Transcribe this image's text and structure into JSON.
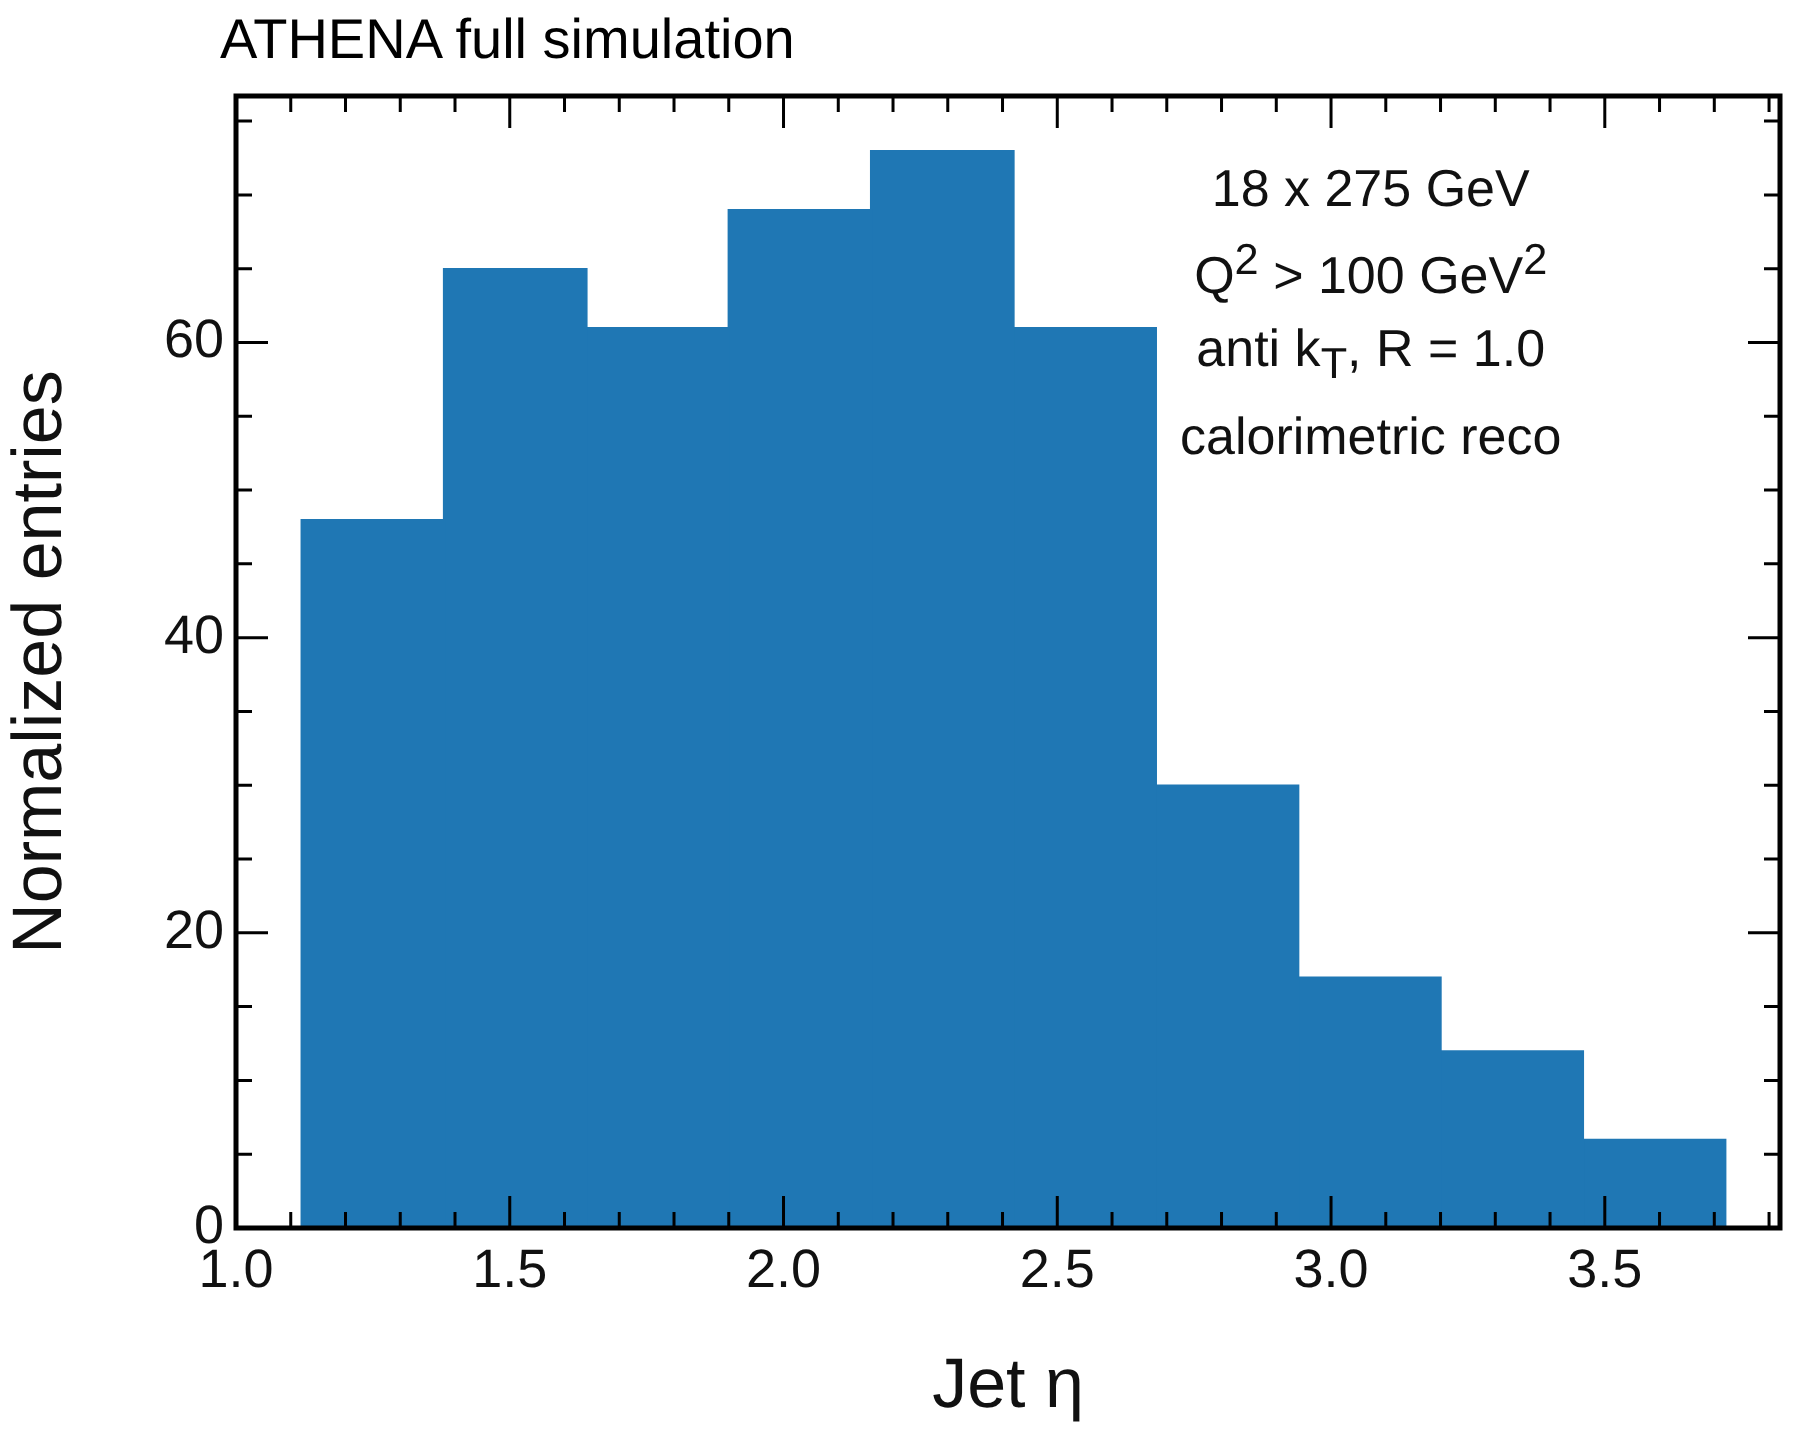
{
  "chart_data": {
    "type": "histogram",
    "title": "ATHENA full simulation",
    "xlabel": "Jet η",
    "ylabel": "Normalized entries",
    "annotations": [
      "18 x 275 GeV",
      "Q$^{2}$ > 100 GeV$^{2}$",
      "anti k$_{T}$, R = 1.0",
      "calorimetric reco"
    ],
    "bins": [
      1.12,
      1.38,
      1.64,
      1.9,
      2.16,
      2.42,
      2.68,
      2.94,
      3.2,
      3.46,
      3.72
    ],
    "values": [
      48,
      65,
      61,
      69,
      73,
      61,
      30,
      17,
      12,
      6
    ],
    "color": "#1f77b4",
    "xlim": [
      1.0,
      3.82
    ],
    "xticks": [
      {
        "value": 1.0,
        "label": "1.0"
      },
      {
        "value": 1.1,
        "label": null
      },
      {
        "value": 1.2,
        "label": null
      },
      {
        "value": 1.3,
        "label": null
      },
      {
        "value": 1.4,
        "label": null
      },
      {
        "value": 1.5,
        "label": "1.5"
      },
      {
        "value": 1.6,
        "label": null
      },
      {
        "value": 1.7,
        "label": null
      },
      {
        "value": 1.8,
        "label": null
      },
      {
        "value": 1.9,
        "label": null
      },
      {
        "value": 2.0,
        "label": "2.0"
      },
      {
        "value": 2.1,
        "label": null
      },
      {
        "value": 2.2,
        "label": null
      },
      {
        "value": 2.3,
        "label": null
      },
      {
        "value": 2.4,
        "label": null
      },
      {
        "value": 2.5,
        "label": "2.5"
      },
      {
        "value": 2.6,
        "label": null
      },
      {
        "value": 2.7,
        "label": null
      },
      {
        "value": 2.8,
        "label": null
      },
      {
        "value": 2.9,
        "label": null
      },
      {
        "value": 3.0,
        "label": "3.0"
      },
      {
        "value": 3.1,
        "label": null
      },
      {
        "value": 3.2,
        "label": null
      },
      {
        "value": 3.3,
        "label": null
      },
      {
        "value": 3.4,
        "label": null
      },
      {
        "value": 3.5,
        "label": "3.5"
      },
      {
        "value": 3.6,
        "label": null
      },
      {
        "value": 3.7,
        "label": null
      },
      {
        "value": 3.8,
        "label": null
      }
    ],
    "ylim": [
      0,
      76.7
    ],
    "yticks": [
      0,
      {
        "value": 5,
        "label": null
      },
      {
        "value": 10,
        "label": null
      },
      {
        "value": 15,
        "label": null
      },
      20,
      {
        "value": 25,
        "label": null
      },
      {
        "value": 30,
        "label": null
      },
      {
        "value": 35,
        "label": null
      },
      40,
      {
        "value": 45,
        "label": null
      },
      {
        "value": 50,
        "label": null
      },
      {
        "value": 55,
        "label": null
      },
      60,
      {
        "value": 65,
        "label": null
      },
      {
        "value": 70,
        "label": null
      },
      {
        "value": 75,
        "label": null
      }
    ],
    "grid": false,
    "legend": false
  }
}
